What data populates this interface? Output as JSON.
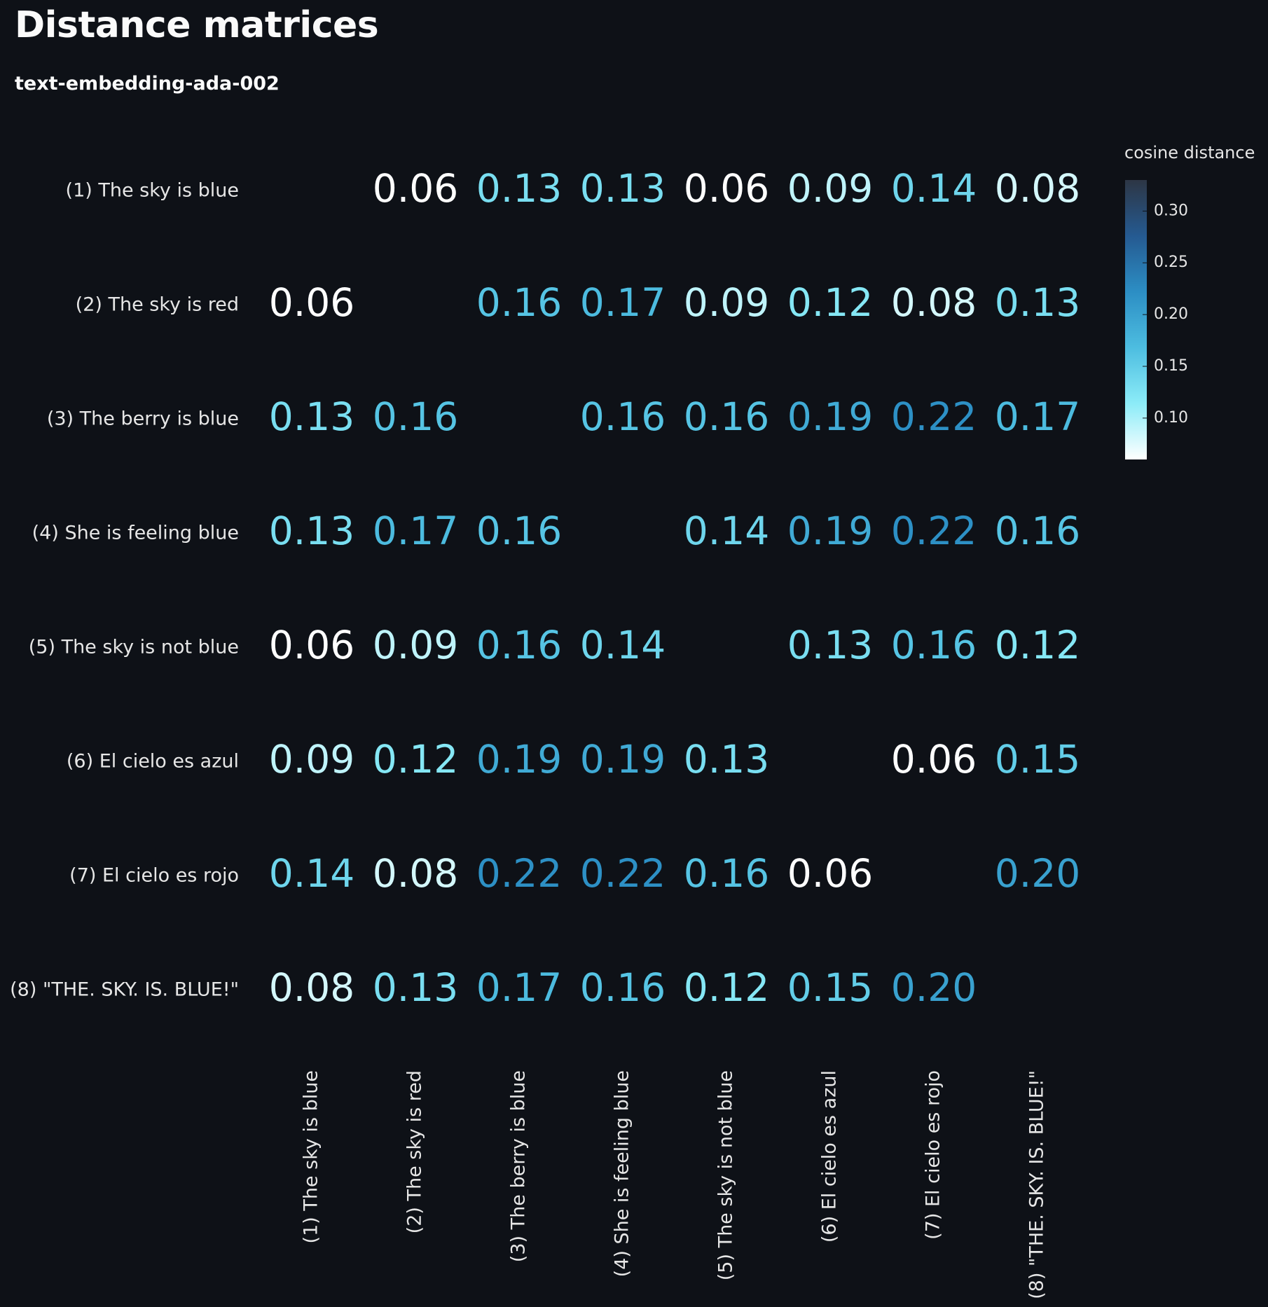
{
  "header": {
    "title": "Distance matrices",
    "subtitle": "text-embedding-ada-002"
  },
  "chart_data": {
    "type": "heatmap",
    "title": "",
    "row_labels": [
      "(1) The sky is blue",
      "(2) The sky is red",
      "(3) The berry is blue",
      "(4) She is feeling blue",
      "(5) The sky is not blue",
      "(6) El cielo es azul",
      "(7) El cielo es rojo",
      "(8) \"THE. SKY. IS. BLUE!\""
    ],
    "col_labels": [
      "(1) The sky is blue",
      "(2) The sky is red",
      "(3) The berry is blue",
      "(4) She is feeling blue",
      "(5) The sky is not blue",
      "(6) El cielo es azul",
      "(7) El cielo es rojo",
      "(8) \"THE. SKY. IS. BLUE!\""
    ],
    "values": [
      [
        null,
        0.06,
        0.13,
        0.13,
        0.06,
        0.09,
        0.14,
        0.08
      ],
      [
        0.06,
        null,
        0.16,
        0.17,
        0.09,
        0.12,
        0.08,
        0.13
      ],
      [
        0.13,
        0.16,
        null,
        0.16,
        0.16,
        0.19,
        0.22,
        0.17
      ],
      [
        0.13,
        0.17,
        0.16,
        null,
        0.14,
        0.19,
        0.22,
        0.16
      ],
      [
        0.06,
        0.09,
        0.16,
        0.14,
        null,
        0.13,
        0.16,
        0.12
      ],
      [
        0.09,
        0.12,
        0.19,
        0.19,
        0.13,
        null,
        0.06,
        0.15
      ],
      [
        0.14,
        0.08,
        0.22,
        0.22,
        0.16,
        0.06,
        null,
        0.2
      ],
      [
        0.08,
        0.13,
        0.17,
        0.16,
        0.12,
        0.15,
        0.2,
        null
      ]
    ],
    "colorbar": {
      "title": "cosine distance",
      "range": [
        0.06,
        0.33
      ],
      "ticks": [
        "0.30",
        "0.25",
        "0.20",
        "0.15",
        "0.10"
      ],
      "tick_values": [
        0.3,
        0.25,
        0.2,
        0.15,
        0.1
      ],
      "colors": [
        "#ffffff",
        "#8cecf8",
        "#4dbde0",
        "#2c8ec4",
        "#255a91",
        "#2d3645"
      ]
    },
    "legend_position": "right",
    "grid": false
  },
  "colors": {
    "background": "#0e1117",
    "text": "#fafafa"
  }
}
